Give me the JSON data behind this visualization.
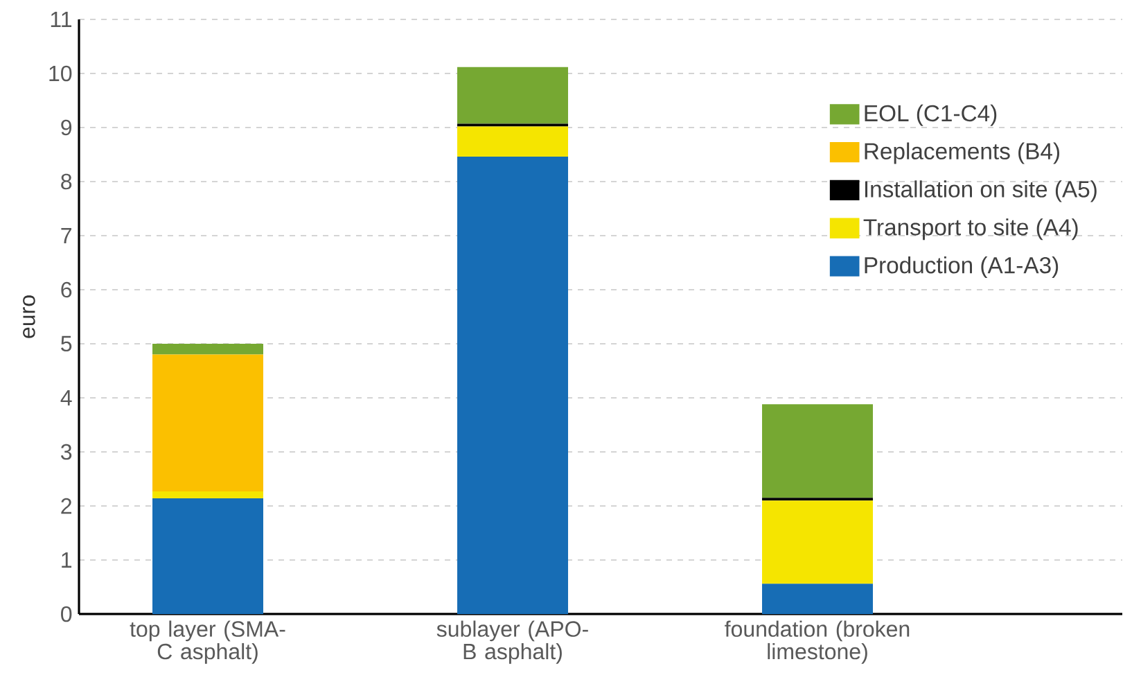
{
  "chart_data": {
    "type": "bar",
    "stacked": true,
    "ylabel": "euro",
    "categories": [
      "top layer (SMA-C asphalt)",
      "sublayer (APO-B asphalt)",
      "foundation (broken limestone)"
    ],
    "series": [
      {
        "name": "Production (A1-A3)",
        "color": "#176db5",
        "values": [
          2.14,
          8.46,
          0.56
        ]
      },
      {
        "name": "Transport to site (A4)",
        "color": "#f5e500",
        "values": [
          0.13,
          0.56,
          1.54
        ]
      },
      {
        "name": "Installation on site (A5)",
        "color": "#000000",
        "values": [
          0,
          0.05,
          0.05
        ]
      },
      {
        "name": "Replacements (B4)",
        "color": "#fbc000",
        "values": [
          2.53,
          0,
          0
        ]
      },
      {
        "name": "EOL (C1-C4)",
        "color": "#76a832",
        "values": [
          0.2,
          1.05,
          1.73
        ]
      }
    ],
    "ylim": [
      0,
      11
    ],
    "yticks": [
      0,
      1,
      2,
      3,
      4,
      5,
      6,
      7,
      8,
      9,
      10,
      11
    ],
    "grid": "y",
    "legend": "top right"
  }
}
